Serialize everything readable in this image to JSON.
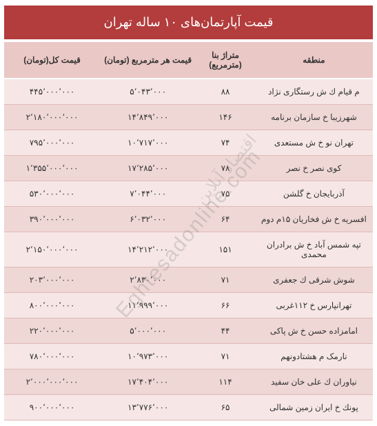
{
  "title": "قیمت آپارتمان‌های ۱۰ ساله تهران",
  "columns": {
    "region": "منطقه",
    "area": "متراژ بنا (مترمربع)",
    "price_per_sqm": "قیمت هر مترمربع (تومان)",
    "total_price": "قیمت کل(تومان)"
  },
  "rows": [
    {
      "region": "م قیام ك ش رستگاری نژاد",
      "area": "۸۸",
      "ppsm": "۵٬۰۴۳٬۰۰۰",
      "total": "۴۴۵٬۰۰۰٬۰۰۰"
    },
    {
      "region": "شهرزیبا خ سازمان برنامه",
      "area": "۱۴۶",
      "ppsm": "۱۴٬۸۴۹٬۰۰۰",
      "total": "۲٬۱۸۰٬۰۰۰٬۰۰۰"
    },
    {
      "region": "تهران نو خ ش مستعدی",
      "area": "۷۴",
      "ppsm": "۱۰٬۷۱۷٬۰۰۰",
      "total": "۷۹۵٬۰۰۰٬۰۰۰"
    },
    {
      "region": "کوی نصر خ نصر",
      "area": "۷۸",
      "ppsm": "۱۷٬۲۸۵٬۰۰۰",
      "total": "۱٬۳۵۵٬۰۰۰٬۰۰۰"
    },
    {
      "region": "آذربایجان خ گلشن",
      "area": "۷۵",
      "ppsm": "۷٬۰۴۴٬۰۰۰",
      "total": "۵۳۰٬۰۰۰٬۰۰۰"
    },
    {
      "region": "افسریه خ ش فخاریان ۱۵م دوم",
      "area": "۶۴",
      "ppsm": "۶٬۰۳۲٬۰۰۰",
      "total": "۳۹۰٬۰۰۰٬۰۰۰"
    },
    {
      "region": "تپه شمس آباد خ ش برادران محمدی",
      "area": "۱۵۱",
      "ppsm": "۱۴٬۲۱۲٬۰۰۰",
      "total": "۲٬۱۵۰٬۰۰۰٬۰۰۰"
    },
    {
      "region": "شوش شرقی ك جعفری",
      "area": "۷۱",
      "ppsm": "۲٬۸۳۰٬۰۰۰",
      "total": "۲۰۳٬۰۰۰٬۰۰۰"
    },
    {
      "region": "تهرانپارس خ ۱۱۲غربی",
      "area": "۶۶",
      "ppsm": "۱۱٬۹۹۹٬۰۰۰",
      "total": "۸۰۰٬۰۰۰٬۰۰۰"
    },
    {
      "region": "امامزاده حسن خ ش پاکی",
      "area": "۴۴",
      "ppsm": "۵٬۰۰۰٬۰۰۰",
      "total": "۲۲۰٬۰۰۰٬۰۰۰"
    },
    {
      "region": "نارمک م هشتادونهم",
      "area": "۷۱",
      "ppsm": "۱۰٬۹۷۳٬۰۰۰",
      "total": "۷۸۰٬۰۰۰٬۰۰۰"
    },
    {
      "region": "نیاوران ك علی خان سفید",
      "area": "۱۱۴",
      "ppsm": "۱۷٬۴۰۴٬۰۰۰",
      "total": "۲٬۰۰۰٬۰۰۰٬۰۰۰"
    },
    {
      "region": "پونك خ ایران زمین شمالی",
      "area": "۶۵",
      "ppsm": "۱۳٬۷۷۶٬۰۰۰",
      "total": "۹۰۰٬۰۰۰٬۰۰۰"
    }
  ],
  "watermark": {
    "en": "Eghtesadonline.com",
    "fa": "اقتصاد آنلاین"
  },
  "colors": {
    "title_bg": "#b33c3c",
    "title_fg": "#ffffff",
    "header_bg": "#eac8c6",
    "row_odd": "#f6e7e6",
    "row_even": "#eed7d5",
    "row_border": "#e0b8b6",
    "text": "#333333"
  }
}
